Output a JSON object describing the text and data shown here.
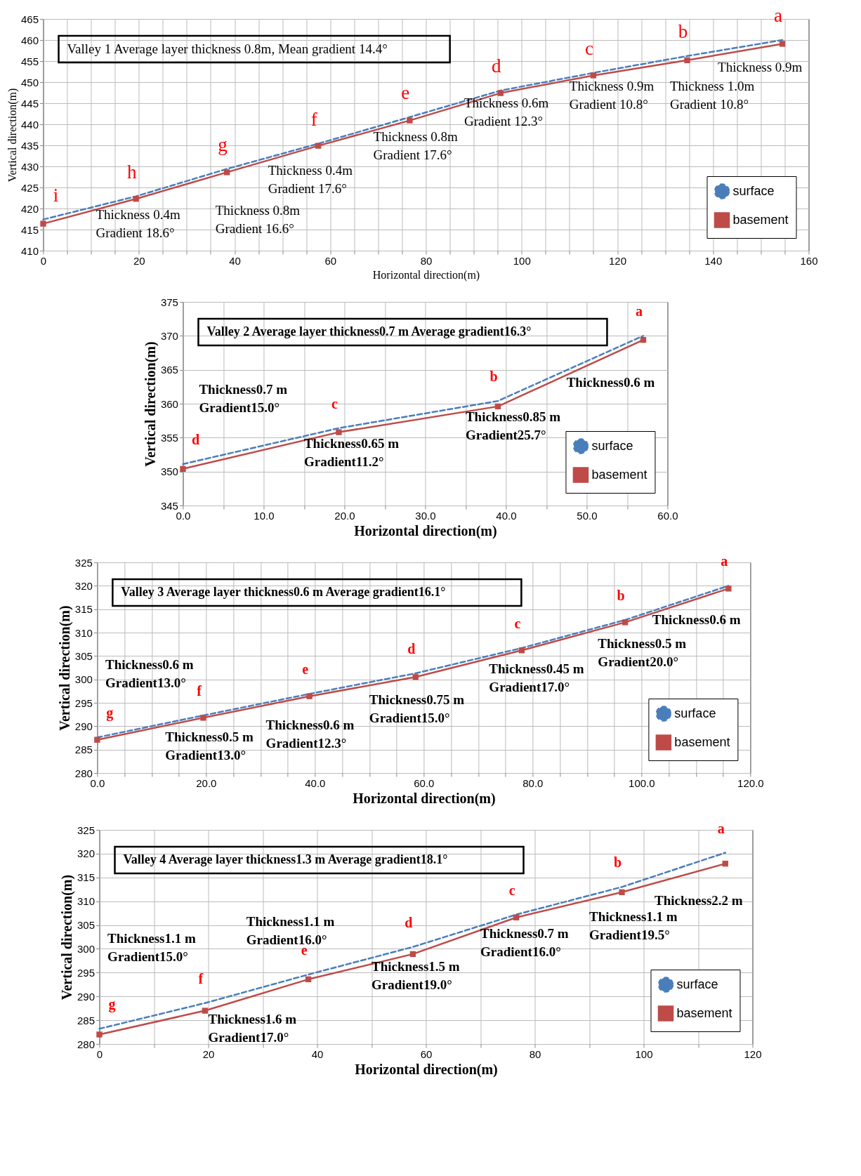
{
  "chart_data": [
    {
      "type": "line",
      "title": "Valley 1    Average layer thickness 0.8m, Mean gradient 14.4°",
      "xlabel": "Horizontal direction(m)",
      "ylabel": "Vertical direction(m)",
      "x": [
        0,
        19.4,
        38.4,
        57.5,
        76.6,
        95.6,
        115,
        134.6,
        154.5
      ],
      "series": [
        {
          "name": "surface",
          "color": "#4a7ebb",
          "line_style": "dashed",
          "marker": "none",
          "values": [
            417.4,
            422.9,
            429.4,
            435.4,
            441.7,
            448.0,
            452.2,
            456.2,
            460.0
          ]
        },
        {
          "name": "basement",
          "color": "#be4b48",
          "line_style": "solid",
          "marker": "square",
          "values": [
            416.4,
            422.3,
            428.6,
            434.9,
            440.9,
            447.4,
            451.6,
            455.2,
            459.1
          ]
        }
      ],
      "xlim": [
        0,
        160
      ],
      "ylim": [
        410,
        465
      ],
      "xticks": [
        0,
        {
          "value": 5,
          "label": null
        },
        {
          "value": 10,
          "label": null
        },
        {
          "value": 15,
          "label": null
        },
        20,
        {
          "value": 25,
          "label": null
        },
        {
          "value": 30,
          "label": null
        },
        {
          "value": 35,
          "label": null
        },
        40,
        {
          "value": 45,
          "label": null
        },
        {
          "value": 50,
          "label": null
        },
        {
          "value": 55,
          "label": null
        },
        60,
        {
          "value": 65,
          "label": null
        },
        {
          "value": 70,
          "label": null
        },
        {
          "value": 75,
          "label": null
        },
        80,
        {
          "value": 85,
          "label": null
        },
        {
          "value": 90,
          "label": null
        },
        {
          "value": 95,
          "label": null
        },
        100,
        {
          "value": 105,
          "label": null
        },
        {
          "value": 110,
          "label": null
        },
        {
          "value": 115,
          "label": null
        },
        120,
        {
          "value": 125,
          "label": null
        },
        {
          "value": 130,
          "label": null
        },
        {
          "value": 135,
          "label": null
        },
        140,
        {
          "value": 145,
          "label": null
        },
        {
          "value": 150,
          "label": null
        },
        {
          "value": 155,
          "label": null
        },
        160
      ],
      "yticks": [
        410,
        415,
        420,
        425,
        430,
        435,
        440,
        445,
        450,
        455,
        460,
        465
      ],
      "grid": true,
      "legend": "bottom right",
      "annotations": [
        {
          "text": "i",
          "x": 0,
          "y": 417.4
        },
        {
          "text": "h",
          "x": 19.4,
          "y": 422.9
        },
        {
          "text": "g",
          "x": 38.4,
          "y": 429.4
        },
        {
          "text": "f",
          "x": 57.5,
          "y": 435.4
        },
        {
          "text": "e",
          "x": 76.6,
          "y": 441.7
        },
        {
          "text": "d",
          "x": 95.6,
          "y": 448.0
        },
        {
          "text": "c",
          "x": 115,
          "y": 452.2
        },
        {
          "text": "b",
          "x": 134.6,
          "y": 456.2
        },
        {
          "text": "a",
          "x": 154.5,
          "y": 460.0
        },
        "Thickness 0.4m\nGradient 18.6°",
        "Thickness 0.8m\nGradient 16.6°",
        "Thickness 0.4m\nGradient 17.6°",
        "Thickness 0.8m\nGradient 17.6°",
        "Thickness 0.6m\nGradient 12.3°",
        "Thickness 0.9m\nGradient 10.8°",
        "Thickness 1.0m\nGradient 10.8°",
        "Thickness 0.9m"
      ]
    },
    {
      "type": "line",
      "title": "Valley 2    Average layer thickness0.7 m Average gradient16.3°",
      "xlabel": "Horizontal direction(m)",
      "ylabel": "Vertical direction(m)",
      "x": [
        0,
        19.3,
        39,
        57
      ],
      "series": [
        {
          "name": "surface",
          "color": "#4a7ebb",
          "line_style": "dashed",
          "marker": "none",
          "values": [
            351.1,
            356.4,
            360.4,
            370.0
          ]
        },
        {
          "name": "basement",
          "color": "#be4b48",
          "line_style": "solid",
          "marker": "square",
          "values": [
            350.4,
            355.8,
            359.6,
            369.4
          ]
        }
      ],
      "xlim": [
        0,
        60
      ],
      "ylim": [
        345,
        375
      ],
      "xticks": [
        {
          "value": 0,
          "label": "0.0"
        },
        {
          "value": 5,
          "label": null
        },
        {
          "value": 10,
          "label": "10.0"
        },
        {
          "value": 15,
          "label": null
        },
        {
          "value": 20,
          "label": "20.0"
        },
        {
          "value": 25,
          "label": null
        },
        {
          "value": 30,
          "label": "30.0"
        },
        {
          "value": 35,
          "label": null
        },
        {
          "value": 40,
          "label": "40.0"
        },
        {
          "value": 45,
          "label": null
        },
        {
          "value": 50,
          "label": "50.0"
        },
        {
          "value": 55,
          "label": null
        },
        {
          "value": 60,
          "label": "60.0"
        }
      ],
      "yticks": [
        345,
        350,
        355,
        360,
        365,
        370,
        375
      ],
      "grid": true,
      "legend": "bottom right",
      "annotations": [
        {
          "text": "d",
          "x": 0,
          "y": 351.1
        },
        {
          "text": "c",
          "x": 19.3,
          "y": 356.4
        },
        {
          "text": "b",
          "x": 39,
          "y": 360.4
        },
        {
          "text": "a",
          "x": 57,
          "y": 370.0
        },
        "Thickness0.7 m\nGradient15.0°",
        "Thickness0.65 m\nGradient11.2°",
        "Thickness0.85 m\nGradient25.7°",
        "Thickness0.6 m"
      ]
    },
    {
      "type": "line",
      "title": "Valley 3    Average layer thickness0.6 m Average gradient16.1°",
      "xlabel": "Horizontal direction(m)",
      "ylabel": "Vertical direction(m)",
      "x": [
        0,
        19.5,
        39,
        58.5,
        78,
        97,
        116
      ],
      "series": [
        {
          "name": "surface",
          "color": "#4a7ebb",
          "line_style": "dashed",
          "marker": "none",
          "values": [
            287.6,
            292.3,
            296.9,
            301.3,
            306.7,
            312.7,
            320.0
          ]
        },
        {
          "name": "basement",
          "color": "#be4b48",
          "line_style": "solid",
          "marker": "square",
          "values": [
            287.1,
            291.8,
            296.4,
            300.5,
            306.2,
            312.2,
            319.4
          ]
        }
      ],
      "xlim": [
        0,
        120
      ],
      "ylim": [
        280,
        325
      ],
      "xticks": [
        {
          "value": 0,
          "label": "0.0"
        },
        {
          "value": 5,
          "label": null
        },
        {
          "value": 10,
          "label": null
        },
        {
          "value": 15,
          "label": null
        },
        {
          "value": 20,
          "label": "20.0"
        },
        {
          "value": 25,
          "label": null
        },
        {
          "value": 30,
          "label": null
        },
        {
          "value": 35,
          "label": null
        },
        {
          "value": 40,
          "label": "40.0"
        },
        {
          "value": 45,
          "label": null
        },
        {
          "value": 50,
          "label": null
        },
        {
          "value": 55,
          "label": null
        },
        {
          "value": 60,
          "label": "60.0"
        },
        {
          "value": 65,
          "label": null
        },
        {
          "value": 70,
          "label": null
        },
        {
          "value": 75,
          "label": null
        },
        {
          "value": 80,
          "label": "80.0"
        },
        {
          "value": 85,
          "label": null
        },
        {
          "value": 90,
          "label": null
        },
        {
          "value": 95,
          "label": null
        },
        {
          "value": 100,
          "label": "100.0"
        },
        {
          "value": 105,
          "label": null
        },
        {
          "value": 110,
          "label": null
        },
        {
          "value": 115,
          "label": null
        },
        {
          "value": 120,
          "label": "120.0"
        }
      ],
      "yticks": [
        280,
        285,
        290,
        295,
        300,
        305,
        310,
        315,
        320,
        325
      ],
      "grid": true,
      "legend": "bottom right",
      "annotations": [
        {
          "text": "g",
          "x": 0,
          "y": 287.6
        },
        {
          "text": "f",
          "x": 19.5,
          "y": 292.3
        },
        {
          "text": "e",
          "x": 39,
          "y": 296.9
        },
        {
          "text": "d",
          "x": 58.5,
          "y": 301.3
        },
        {
          "text": "c",
          "x": 78,
          "y": 306.7
        },
        {
          "text": "b",
          "x": 97,
          "y": 312.7
        },
        {
          "text": "a",
          "x": 116,
          "y": 320.0
        },
        "Thickness0.6 m\nGradient13.0°",
        "Thickness0.5 m\nGradient13.0°",
        "Thickness0.6 m\nGradient12.3°",
        "Thickness0.75 m\nGradient15.0°",
        "Thickness0.45 m\nGradient17.0°",
        "Thickness0.5 m\nGradient20.0°",
        "Thickness0.6 m"
      ]
    },
    {
      "type": "line",
      "title": "Valley 4    Average layer thickness1.3 m Average gradient18.1°",
      "xlabel": "Horizontal direction(m)",
      "ylabel": "Vertical direction(m)",
      "x": [
        0,
        19.4,
        38.4,
        57.6,
        76.6,
        96,
        115
      ],
      "series": [
        {
          "name": "surface",
          "color": "#4a7ebb",
          "line_style": "dashed",
          "marker": "none",
          "values": [
            283.2,
            288.6,
            294.6,
            300.4,
            307.2,
            313.0,
            320.2
          ]
        },
        {
          "name": "basement",
          "color": "#be4b48",
          "line_style": "solid",
          "marker": "square",
          "values": [
            282.0,
            287.0,
            293.6,
            298.9,
            306.6,
            311.9,
            317.9
          ]
        }
      ],
      "xlim": [
        0,
        120
      ],
      "ylim": [
        280,
        325
      ],
      "xticks": [
        0,
        {
          "value": 10,
          "label": null
        },
        20,
        {
          "value": 30,
          "label": null
        },
        40,
        {
          "value": 50,
          "label": null
        },
        60,
        {
          "value": 70,
          "label": null
        },
        80,
        {
          "value": 90,
          "label": null
        },
        100,
        {
          "value": 110,
          "label": null
        },
        120
      ],
      "yticks": [
        280,
        285,
        290,
        295,
        300,
        305,
        310,
        315,
        320,
        325
      ],
      "grid": true,
      "legend": "bottom right",
      "annotations": [
        {
          "text": "g",
          "x": 0,
          "y": 283.2
        },
        {
          "text": "f",
          "x": 19.4,
          "y": 288.6
        },
        {
          "text": "e",
          "x": 38.4,
          "y": 294.6
        },
        {
          "text": "d",
          "x": 57.6,
          "y": 300.4
        },
        {
          "text": "c",
          "x": 76.6,
          "y": 307.2
        },
        {
          "text": "b",
          "x": 96,
          "y": 313.0
        },
        {
          "text": "a",
          "x": 115,
          "y": 320.2
        },
        "Thickness1.1 m\nGradient15.0°",
        "Thickness1.1 m\nGradient16.0°",
        "Thickness1.6 m\nGradient17.0°",
        "Thickness1.5 m\nGradient19.0°",
        "Thickness0.7 m\nGradient16.0°",
        "Thickness1.1 m\nGradient19.5°",
        "Thickness2.2 m"
      ]
    }
  ]
}
